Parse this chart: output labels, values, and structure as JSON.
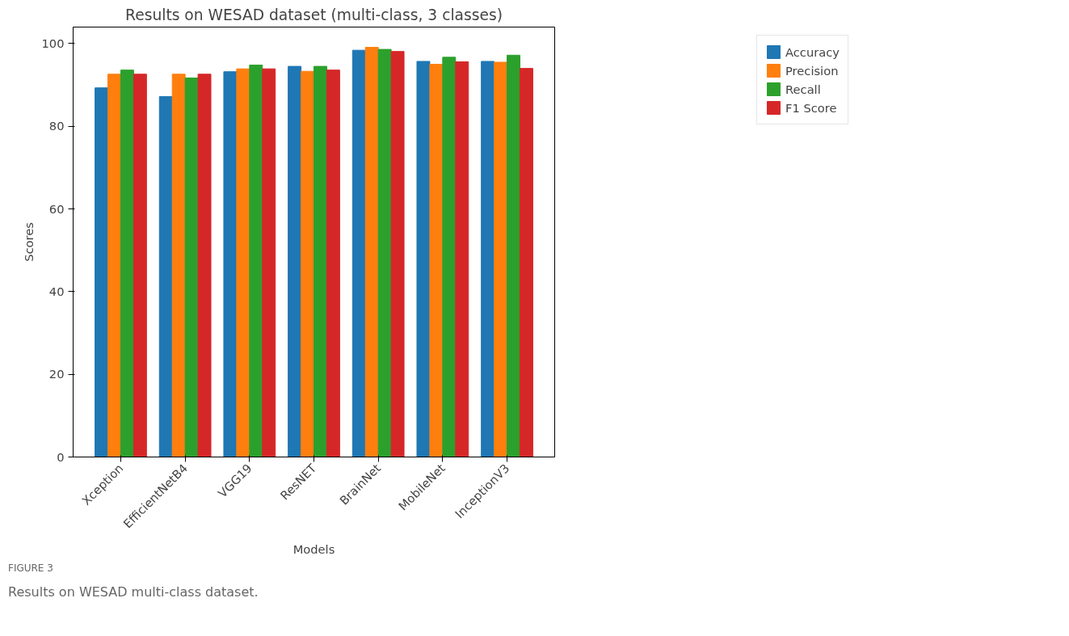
{
  "chart_data": {
    "type": "bar",
    "title": "Results on WESAD dataset (multi-class, 3 classes)",
    "xlabel": "Models",
    "ylabel": "Scores",
    "categories": [
      "Xception",
      "EfficientNetB4",
      "VGG19",
      "ResNET",
      "BrainNet",
      "MobileNet",
      "InceptionV3"
    ],
    "series": [
      {
        "name": "Accuracy",
        "color": "#1f77b4",
        "values": [
          89.3,
          87.2,
          93.2,
          94.5,
          98.4,
          95.7,
          95.7
        ]
      },
      {
        "name": "Precision",
        "color": "#ff7f0e",
        "values": [
          92.6,
          92.6,
          93.9,
          93.3,
          99.1,
          95.0,
          95.5
        ]
      },
      {
        "name": "Recall",
        "color": "#2ca02c",
        "values": [
          93.6,
          91.7,
          94.8,
          94.5,
          98.6,
          96.7,
          97.2
        ]
      },
      {
        "name": "F1 Score",
        "color": "#d62728",
        "values": [
          92.6,
          92.6,
          93.9,
          93.6,
          98.1,
          95.6,
          94.0
        ]
      }
    ],
    "ylim": [
      0,
      104
    ],
    "yticks": [
      0,
      20,
      40,
      60,
      80,
      100
    ],
    "grid": false,
    "legend": "top right",
    "annotations": [
      "FIGURE 3",
      "Results on WESAD multi-class dataset."
    ]
  }
}
